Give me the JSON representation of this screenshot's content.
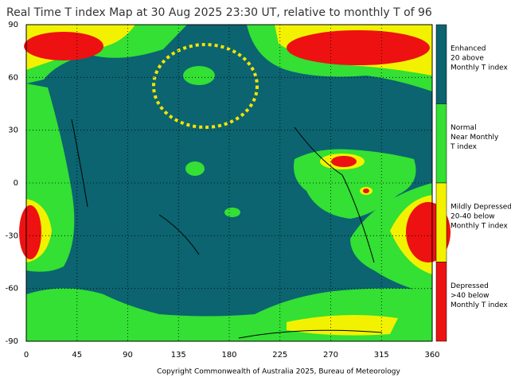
{
  "header": {
    "title": "Real Time T index Map at 30 Aug 2025 23:30 UT, relative to monthly T of 96"
  },
  "axes": {
    "x_ticks": [
      "0",
      "45",
      "90",
      "135",
      "180",
      "225",
      "270",
      "315",
      "360"
    ],
    "y_ticks": [
      "90",
      "60",
      "30",
      "0",
      "-30",
      "-60",
      "-90"
    ]
  },
  "legend": [
    {
      "color": "#0b6470",
      "lines": [
        "Enhanced",
        "20 above",
        "Monthly T index"
      ]
    },
    {
      "color": "#33e033",
      "lines": [
        "Normal",
        "Near Monthly",
        "T index"
      ]
    },
    {
      "color": "#f2f200",
      "lines": [
        "Mildly Depressed",
        "20-40 below",
        "Monthly T index"
      ]
    },
    {
      "color": "#ee1111",
      "lines": [
        "Depressed",
        ">40 below",
        "Monthly T index"
      ]
    }
  ],
  "footer": {
    "copyright": "Copyright Commonwealth of Australia 2025, Bureau of Meteorology"
  }
}
